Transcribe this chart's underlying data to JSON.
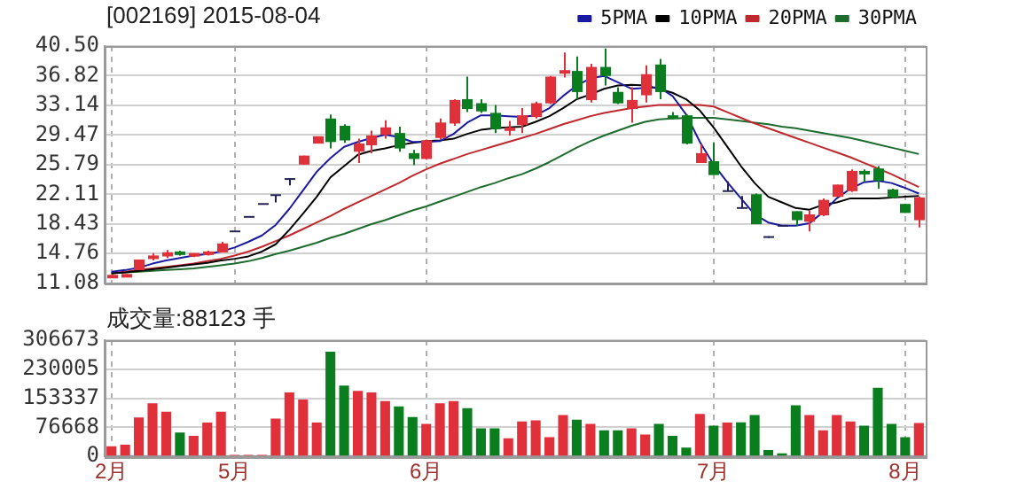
{
  "chart_data": [
    {
      "type": "candlestick",
      "title": "[002169] 2015-08-04",
      "legend": "top right",
      "grid": true,
      "tick_labels": "y",
      "marker": "none",
      "categories": [
        null,
        null,
        null,
        null,
        null,
        null,
        null,
        null,
        null,
        null,
        null,
        null,
        null,
        null,
        null,
        null,
        null,
        null,
        null,
        null,
        null,
        null,
        null,
        null,
        null,
        null,
        null,
        null,
        null,
        null,
        null,
        null,
        null,
        null,
        null,
        null,
        null,
        null,
        null,
        null,
        null,
        null,
        null,
        null,
        null,
        null,
        null,
        null,
        null,
        null,
        null,
        null,
        null,
        null,
        null,
        null,
        null,
        null,
        null,
        null
      ],
      "ylim": [
        11.08,
        40.5
      ],
      "yticks": [
        11.08,
        14.76,
        18.43,
        22.11,
        25.79,
        29.47,
        33.14,
        36.82,
        {
          "value": 40.5,
          "label": "40.50"
        }
      ],
      "ohlc": [
        [
          11.8,
          12.1,
          11.7,
          12.0
        ],
        [
          12.0,
          12.2,
          11.9,
          12.1
        ],
        [
          12.8,
          13.9,
          12.7,
          13.9
        ],
        [
          14.2,
          14.8,
          13.9,
          14.4
        ],
        [
          14.5,
          15.2,
          14.2,
          14.8
        ],
        [
          14.9,
          15.1,
          14.5,
          14.7
        ],
        [
          14.5,
          14.8,
          14.3,
          14.7
        ],
        [
          14.7,
          15.1,
          14.5,
          14.9
        ],
        [
          15.0,
          16.2,
          14.9,
          15.9
        ],
        [
          17.5,
          17.5,
          17.5,
          17.5
        ],
        [
          19.3,
          19.3,
          19.3,
          19.3
        ],
        [
          20.9,
          20.9,
          20.9,
          20.9
        ],
        [
          22.0,
          22.0,
          21.1,
          22.0
        ],
        [
          24.0,
          24.0,
          23.2,
          24.0
        ],
        [
          25.9,
          26.9,
          25.8,
          26.8
        ],
        [
          28.5,
          29.2,
          28.4,
          29.2
        ],
        [
          31.4,
          32.0,
          27.8,
          28.7
        ],
        [
          30.5,
          30.8,
          28.5,
          28.9
        ],
        [
          27.5,
          29.0,
          26.0,
          28.3
        ],
        [
          28.3,
          30.0,
          27.2,
          29.3
        ],
        [
          29.6,
          31.3,
          29.0,
          30.3
        ],
        [
          29.6,
          30.5,
          27.4,
          27.9
        ],
        [
          27.1,
          27.6,
          25.7,
          26.6
        ],
        [
          26.6,
          28.9,
          26.4,
          28.7
        ],
        [
          29.2,
          31.5,
          28.9,
          30.9
        ],
        [
          31.0,
          33.9,
          30.6,
          33.7
        ],
        [
          33.8,
          36.7,
          32.3,
          32.8
        ],
        [
          33.3,
          33.9,
          32.2,
          32.5
        ],
        [
          32.1,
          33.2,
          29.7,
          30.3
        ],
        [
          30.1,
          31.2,
          29.4,
          30.3
        ],
        [
          30.8,
          32.8,
          29.7,
          31.8
        ],
        [
          31.8,
          33.6,
          31.5,
          33.3
        ],
        [
          33.5,
          36.8,
          33.3,
          36.6
        ],
        [
          37.2,
          39.7,
          36.6,
          37.4
        ],
        [
          37.3,
          39.2,
          33.9,
          34.9
        ],
        [
          33.9,
          38.3,
          33.5,
          37.8
        ],
        [
          37.8,
          40.2,
          35.6,
          36.9
        ],
        [
          34.7,
          35.4,
          33.3,
          33.5
        ],
        [
          32.8,
          35.4,
          31.0,
          33.7
        ],
        [
          34.5,
          38.1,
          33.5,
          36.9
        ],
        [
          38.1,
          38.9,
          33.9,
          34.9
        ],
        [
          31.8,
          32.3,
          31.4,
          31.7
        ],
        [
          31.8,
          32.0,
          28.3,
          28.5
        ],
        [
          26.1,
          28.3,
          26.1,
          27.1
        ],
        [
          26.1,
          28.5,
          24.6,
          24.6
        ],
        [
          22.5,
          23.7,
          22.5,
          22.5
        ],
        [
          20.4,
          21.9,
          20.4,
          20.4
        ],
        [
          22.0,
          22.2,
          18.4,
          18.5
        ],
        [
          16.8,
          16.9,
          16.7,
          16.8
        ],
        [
          18.2,
          18.2,
          18.2,
          18.2
        ],
        [
          19.9,
          20.0,
          18.2,
          19.0
        ],
        [
          18.8,
          20.1,
          17.5,
          19.5
        ],
        [
          19.6,
          21.6,
          19.4,
          21.3
        ],
        [
          21.9,
          23.3,
          21.8,
          23.2
        ],
        [
          22.6,
          25.2,
          22.4,
          24.9
        ],
        [
          24.9,
          25.2,
          23.6,
          24.7
        ],
        [
          25.2,
          25.6,
          22.8,
          23.9
        ],
        [
          22.6,
          22.8,
          21.6,
          21.8
        ],
        [
          20.8,
          20.9,
          19.8,
          19.9
        ],
        [
          19.0,
          21.8,
          18.0,
          21.6
        ]
      ],
      "colors": [
        "#e0303a",
        "#e0303a",
        "#e0303a",
        "#e0303a",
        "#e0303a",
        "#0a7d1f",
        "#e0303a",
        "#e0303a",
        "#e0303a",
        "#222255",
        "#222255",
        "#222255",
        "#222255",
        "#222255",
        "#e0303a",
        "#e0303a",
        "#0a7d1f",
        "#0a7d1f",
        "#e0303a",
        "#e0303a",
        "#e0303a",
        "#0a7d1f",
        "#0a7d1f",
        "#e0303a",
        "#e0303a",
        "#e0303a",
        "#0a7d1f",
        "#0a7d1f",
        "#0a7d1f",
        "#e0303a",
        "#e0303a",
        "#e0303a",
        "#e0303a",
        "#e0303a",
        "#0a7d1f",
        "#e0303a",
        "#0a7d1f",
        "#0a7d1f",
        "#e0303a",
        "#e0303a",
        "#0a7d1f",
        "#0a7d1f",
        "#0a7d1f",
        "#e0303a",
        "#0a7d1f",
        "#222255",
        "#222255",
        "#0a7d1f",
        "#222255",
        "#222255",
        "#0a7d1f",
        "#e0303a",
        "#e0303a",
        "#e0303a",
        "#e0303a",
        "#0a7d1f",
        "#0a7d1f",
        "#0a7d1f",
        "#0a7d1f",
        "#e0303a"
      ],
      "series": [
        {
          "name": "5PMA",
          "type": "line",
          "color": "#1a1aa0",
          "values": [
            12.5,
            12.7,
            13.0,
            13.5,
            13.9,
            14.2,
            14.5,
            14.7,
            15.0,
            15.5,
            16.2,
            17.0,
            18.3,
            20.3,
            22.6,
            24.9,
            26.6,
            28.0,
            28.6,
            29.1,
            29.5,
            29.2,
            28.6,
            28.6,
            28.7,
            29.6,
            31.0,
            31.9,
            31.9,
            31.8,
            31.7,
            31.9,
            32.8,
            34.3,
            35.6,
            36.5,
            36.8,
            36.0,
            35.2,
            35.3,
            35.4,
            34.3,
            32.0,
            28.6,
            25.8,
            23.6,
            21.6,
            19.6,
            18.6,
            18.2,
            18.2,
            18.5,
            19.9,
            21.6,
            22.8,
            23.6,
            23.8,
            23.5,
            22.9,
            22.2
          ]
        },
        {
          "name": "10PMA",
          "type": "line",
          "color": "#000000",
          "values": [
            12.3,
            12.4,
            12.6,
            12.8,
            13.0,
            13.2,
            13.4,
            13.6,
            13.9,
            14.1,
            14.4,
            15.0,
            15.9,
            17.7,
            19.7,
            21.8,
            24.2,
            25.6,
            27.0,
            27.5,
            27.8,
            28.2,
            28.5,
            28.7,
            28.8,
            29.0,
            29.6,
            30.1,
            30.3,
            30.4,
            30.5,
            31.1,
            31.8,
            32.8,
            33.9,
            34.5,
            35.2,
            35.6,
            35.7,
            35.6,
            35.2,
            34.7,
            33.9,
            32.5,
            30.4,
            28.0,
            25.6,
            23.5,
            21.8,
            21.1,
            20.4,
            20.2,
            20.8,
            21.1,
            21.6,
            21.6,
            21.6,
            21.7,
            21.8,
            21.9
          ]
        },
        {
          "name": "20PMA",
          "type": "line",
          "color": "#c0282d",
          "values": [
            12.3,
            12.5,
            12.7,
            12.9,
            13.1,
            13.3,
            13.5,
            13.8,
            14.1,
            14.5,
            15.0,
            15.6,
            16.3,
            17.0,
            17.8,
            18.6,
            19.4,
            20.3,
            21.1,
            21.9,
            22.7,
            23.5,
            24.4,
            25.2,
            25.9,
            26.5,
            27.1,
            27.6,
            28.1,
            28.6,
            29.1,
            29.6,
            30.2,
            30.8,
            31.3,
            31.8,
            32.2,
            32.5,
            32.8,
            33.0,
            33.2,
            33.2,
            33.2,
            33.2,
            33.0,
            32.3,
            31.6,
            30.9,
            30.3,
            29.7,
            29.1,
            28.5,
            27.9,
            27.3,
            26.7,
            26.0,
            25.3,
            24.6,
            23.8,
            23.0
          ]
        },
        {
          "name": "30PMA",
          "type": "line",
          "color": "#1e6b2e",
          "values": [
            12.3,
            12.4,
            12.5,
            12.6,
            12.7,
            12.8,
            12.9,
            13.1,
            13.3,
            13.5,
            13.8,
            14.2,
            14.7,
            15.1,
            15.6,
            16.1,
            16.7,
            17.2,
            17.8,
            18.4,
            18.9,
            19.5,
            20.1,
            20.6,
            21.2,
            21.8,
            22.4,
            23.0,
            23.5,
            24.1,
            24.6,
            25.3,
            26.1,
            27.0,
            27.9,
            28.7,
            29.4,
            30.0,
            30.6,
            31.1,
            31.4,
            31.5,
            31.6,
            31.6,
            31.6,
            31.4,
            31.2,
            31.0,
            30.8,
            30.5,
            30.3,
            30.0,
            29.7,
            29.4,
            29.1,
            28.7,
            28.3,
            27.9,
            27.5,
            27.1
          ]
        }
      ]
    },
    {
      "type": "bar",
      "title": "成交量:88123 手",
      "grid": true,
      "categories": [
        "2月",
        null,
        null,
        null,
        null,
        null,
        null,
        null,
        null,
        "5月",
        null,
        null,
        null,
        null,
        null,
        null,
        null,
        null,
        null,
        null,
        null,
        null,
        null,
        "6月",
        null,
        null,
        null,
        null,
        null,
        null,
        null,
        null,
        null,
        null,
        null,
        null,
        null,
        null,
        null,
        null,
        null,
        null,
        null,
        null,
        "7月",
        null,
        null,
        null,
        null,
        null,
        null,
        null,
        null,
        null,
        null,
        null,
        null,
        null,
        "8月",
        null
      ],
      "ylim": [
        0,
        306673
      ],
      "yticks": [
        0,
        76668,
        153337,
        230005,
        306673
      ],
      "values": [
        27000,
        31000,
        103000,
        140000,
        118000,
        63000,
        54000,
        89000,
        118000,
        4000,
        4000,
        4000,
        100000,
        169000,
        150000,
        89000,
        276000,
        187000,
        173000,
        169000,
        146000,
        132000,
        104000,
        86000,
        140000,
        146000,
        127000,
        74000,
        74000,
        48000,
        92000,
        95000,
        51000,
        109000,
        97000,
        86000,
        69000,
        69000,
        74000,
        58000,
        86000,
        54000,
        23000,
        112000,
        81000,
        89000,
        90000,
        109000,
        17000,
        8000,
        135000,
        109000,
        69000,
        109000,
        92000,
        81000,
        181000,
        86000,
        51000,
        88123
      ],
      "colors": [
        "#e0303a",
        "#e0303a",
        "#e0303a",
        "#e0303a",
        "#e0303a",
        "#0a7d1f",
        "#e0303a",
        "#e0303a",
        "#e0303a",
        "#e0303a",
        "#e0303a",
        "#e0303a",
        "#e0303a",
        "#e0303a",
        "#e0303a",
        "#e0303a",
        "#0a7d1f",
        "#0a7d1f",
        "#e0303a",
        "#e0303a",
        "#e0303a",
        "#0a7d1f",
        "#0a7d1f",
        "#e0303a",
        "#e0303a",
        "#e0303a",
        "#0a7d1f",
        "#0a7d1f",
        "#0a7d1f",
        "#e0303a",
        "#e0303a",
        "#e0303a",
        "#e0303a",
        "#e0303a",
        "#0a7d1f",
        "#e0303a",
        "#0a7d1f",
        "#0a7d1f",
        "#e0303a",
        "#e0303a",
        "#0a7d1f",
        "#0a7d1f",
        "#0a7d1f",
        "#e0303a",
        "#0a7d1f",
        "#e0303a",
        "#0a7d1f",
        "#0a7d1f",
        "#0a7d1f",
        "#0a7d1f",
        "#0a7d1f",
        "#e0303a",
        "#e0303a",
        "#e0303a",
        "#e0303a",
        "#0a7d1f",
        "#0a7d1f",
        "#0a7d1f",
        "#0a7d1f",
        "#e0303a"
      ]
    }
  ]
}
